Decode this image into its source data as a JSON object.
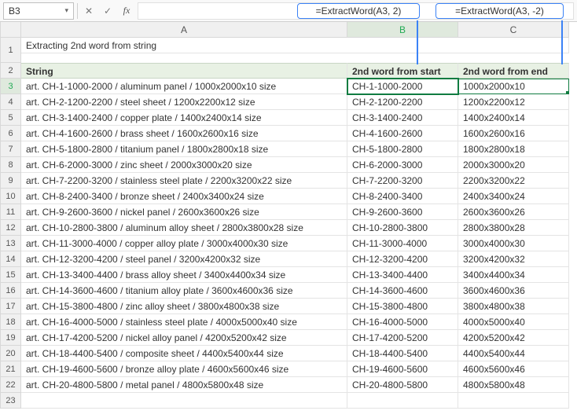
{
  "name_box": {
    "value": "B3"
  },
  "formula_input": {
    "value": ""
  },
  "callouts": {
    "b": "=ExtractWord(A3, 2)",
    "c": "=ExtractWord(A3, -2)"
  },
  "columns": {
    "a": "A",
    "b": "B",
    "c": "C"
  },
  "title": "Extracting 2nd word from string",
  "headers": {
    "string": "String",
    "from_start": "2nd word from start",
    "from_end": "2nd word from end"
  },
  "rows": [
    {
      "n": "3",
      "a": "art. CH-1-1000-2000 / aluminum panel / 1000x2000x10 size",
      "b": "CH-1-1000-2000",
      "c": "1000x2000x10"
    },
    {
      "n": "4",
      "a": "art. CH-2-1200-2200 / steel sheet / 1200x2200x12 size",
      "b": "CH-2-1200-2200",
      "c": "1200x2200x12"
    },
    {
      "n": "5",
      "a": "art. CH-3-1400-2400 / copper plate / 1400x2400x14 size",
      "b": "CH-3-1400-2400",
      "c": "1400x2400x14"
    },
    {
      "n": "6",
      "a": "art. CH-4-1600-2600 / brass sheet / 1600x2600x16 size",
      "b": "CH-4-1600-2600",
      "c": "1600x2600x16"
    },
    {
      "n": "7",
      "a": "art. CH-5-1800-2800 / titanium panel / 1800x2800x18 size",
      "b": "CH-5-1800-2800",
      "c": "1800x2800x18"
    },
    {
      "n": "8",
      "a": "art. CH-6-2000-3000 / zinc sheet / 2000x3000x20 size",
      "b": "CH-6-2000-3000",
      "c": "2000x3000x20"
    },
    {
      "n": "9",
      "a": "art. CH-7-2200-3200 / stainless steel plate / 2200x3200x22 size",
      "b": "CH-7-2200-3200",
      "c": "2200x3200x22"
    },
    {
      "n": "10",
      "a": "art. CH-8-2400-3400 / bronze sheet / 2400x3400x24 size",
      "b": "CH-8-2400-3400",
      "c": "2400x3400x24"
    },
    {
      "n": "11",
      "a": "art. CH-9-2600-3600 / nickel panel / 2600x3600x26 size",
      "b": "CH-9-2600-3600",
      "c": "2600x3600x26"
    },
    {
      "n": "12",
      "a": "art. CH-10-2800-3800 / aluminum alloy sheet / 2800x3800x28 size",
      "b": "CH-10-2800-3800",
      "c": "2800x3800x28"
    },
    {
      "n": "13",
      "a": "art. CH-11-3000-4000 / copper alloy plate / 3000x4000x30 size",
      "b": "CH-11-3000-4000",
      "c": "3000x4000x30"
    },
    {
      "n": "14",
      "a": "art. CH-12-3200-4200 / steel panel / 3200x4200x32 size",
      "b": "CH-12-3200-4200",
      "c": "3200x4200x32"
    },
    {
      "n": "15",
      "a": "art. CH-13-3400-4400 / brass alloy sheet / 3400x4400x34 size",
      "b": "CH-13-3400-4400",
      "c": "3400x4400x34"
    },
    {
      "n": "16",
      "a": "art. CH-14-3600-4600 / titanium alloy plate / 3600x4600x36 size",
      "b": "CH-14-3600-4600",
      "c": "3600x4600x36"
    },
    {
      "n": "17",
      "a": "art. CH-15-3800-4800 / zinc alloy sheet / 3800x4800x38 size",
      "b": "CH-15-3800-4800",
      "c": "3800x4800x38"
    },
    {
      "n": "18",
      "a": "art. CH-16-4000-5000 / stainless steel plate / 4000x5000x40 size",
      "b": "CH-16-4000-5000",
      "c": "4000x5000x40"
    },
    {
      "n": "19",
      "a": "art. CH-17-4200-5200 / nickel alloy panel / 4200x5200x42 size",
      "b": "CH-17-4200-5200",
      "c": "4200x5200x42"
    },
    {
      "n": "20",
      "a": "art. CH-18-4400-5400 / composite sheet / 4400x5400x44 size",
      "b": "CH-18-4400-5400",
      "c": "4400x5400x44"
    },
    {
      "n": "21",
      "a": "art. CH-19-4600-5600 / bronze alloy plate / 4600x5600x46 size",
      "b": "CH-19-4600-5600",
      "c": "4600x5600x46"
    },
    {
      "n": "22",
      "a": "art. CH-20-4800-5800 / metal panel / 4800x5800x48 size",
      "b": "CH-20-4800-5800",
      "c": "4800x5800x48"
    }
  ],
  "empty_row": "23"
}
